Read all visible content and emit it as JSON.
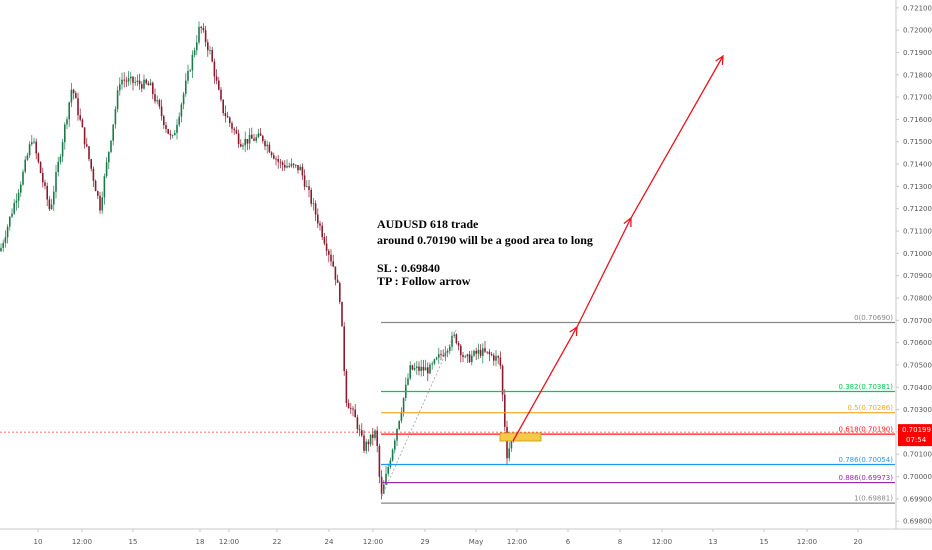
{
  "chart_data": {
    "type": "candlestick",
    "symbol_note": "AUDUSD",
    "y_axis": {
      "ticks": [
        "0.72100",
        "0.72000",
        "0.71900",
        "0.71800",
        "0.71700",
        "0.71600",
        "0.71500",
        "0.71400",
        "0.71300",
        "0.71200",
        "0.71100",
        "0.71000",
        "0.70900",
        "0.70800",
        "0.70700",
        "0.70600",
        "0.70500",
        "0.70400",
        "0.70300",
        "0.70200",
        "0.70100",
        "0.70000",
        "0.69900",
        "0.69800"
      ],
      "range": [
        0.69765,
        0.72135
      ]
    },
    "x_axis": {
      "ticks": [
        "10",
        "12:00",
        "15",
        "18",
        "12:00",
        "22",
        "24",
        "12:00",
        "29",
        "May",
        "12:00",
        "6",
        "8",
        "12:00",
        "13",
        "15",
        "12:00",
        "20"
      ]
    },
    "fibonacci": [
      {
        "label": "0(0.70690)",
        "value": 0.7069,
        "color": "#888888"
      },
      {
        "label": "0.382(0.70381)",
        "value": 0.70381,
        "color": "#00c853"
      },
      {
        "label": "0.5(0.70286)",
        "value": 0.70286,
        "color": "#f5a623"
      },
      {
        "label": "0.618(0.70190)",
        "value": 0.7019,
        "color": "#ff1a1a"
      },
      {
        "label": "0.786(0.70054)",
        "value": 0.70054,
        "color": "#2196f3"
      },
      {
        "label": "0.886(0.69973)",
        "value": 0.69973,
        "color": "#9c27b0"
      },
      {
        "label": "1(0.69881)",
        "value": 0.69881,
        "color": "#888888"
      }
    ],
    "current_price": {
      "value": "0.70199",
      "countdown": "07:54",
      "color": "#ff0000"
    },
    "annotation": {
      "title": "AUDUSD 618 trade",
      "line2": "around 0.70190 will be a good area to long",
      "sl": "SL : 0.69840",
      "tp": "TP : Follow arrow"
    },
    "bull_color": "#1b7a4a",
    "bear_color": "#8b1a2e",
    "arrow_color": "#e8141e",
    "zone_color": "#f7c948"
  }
}
